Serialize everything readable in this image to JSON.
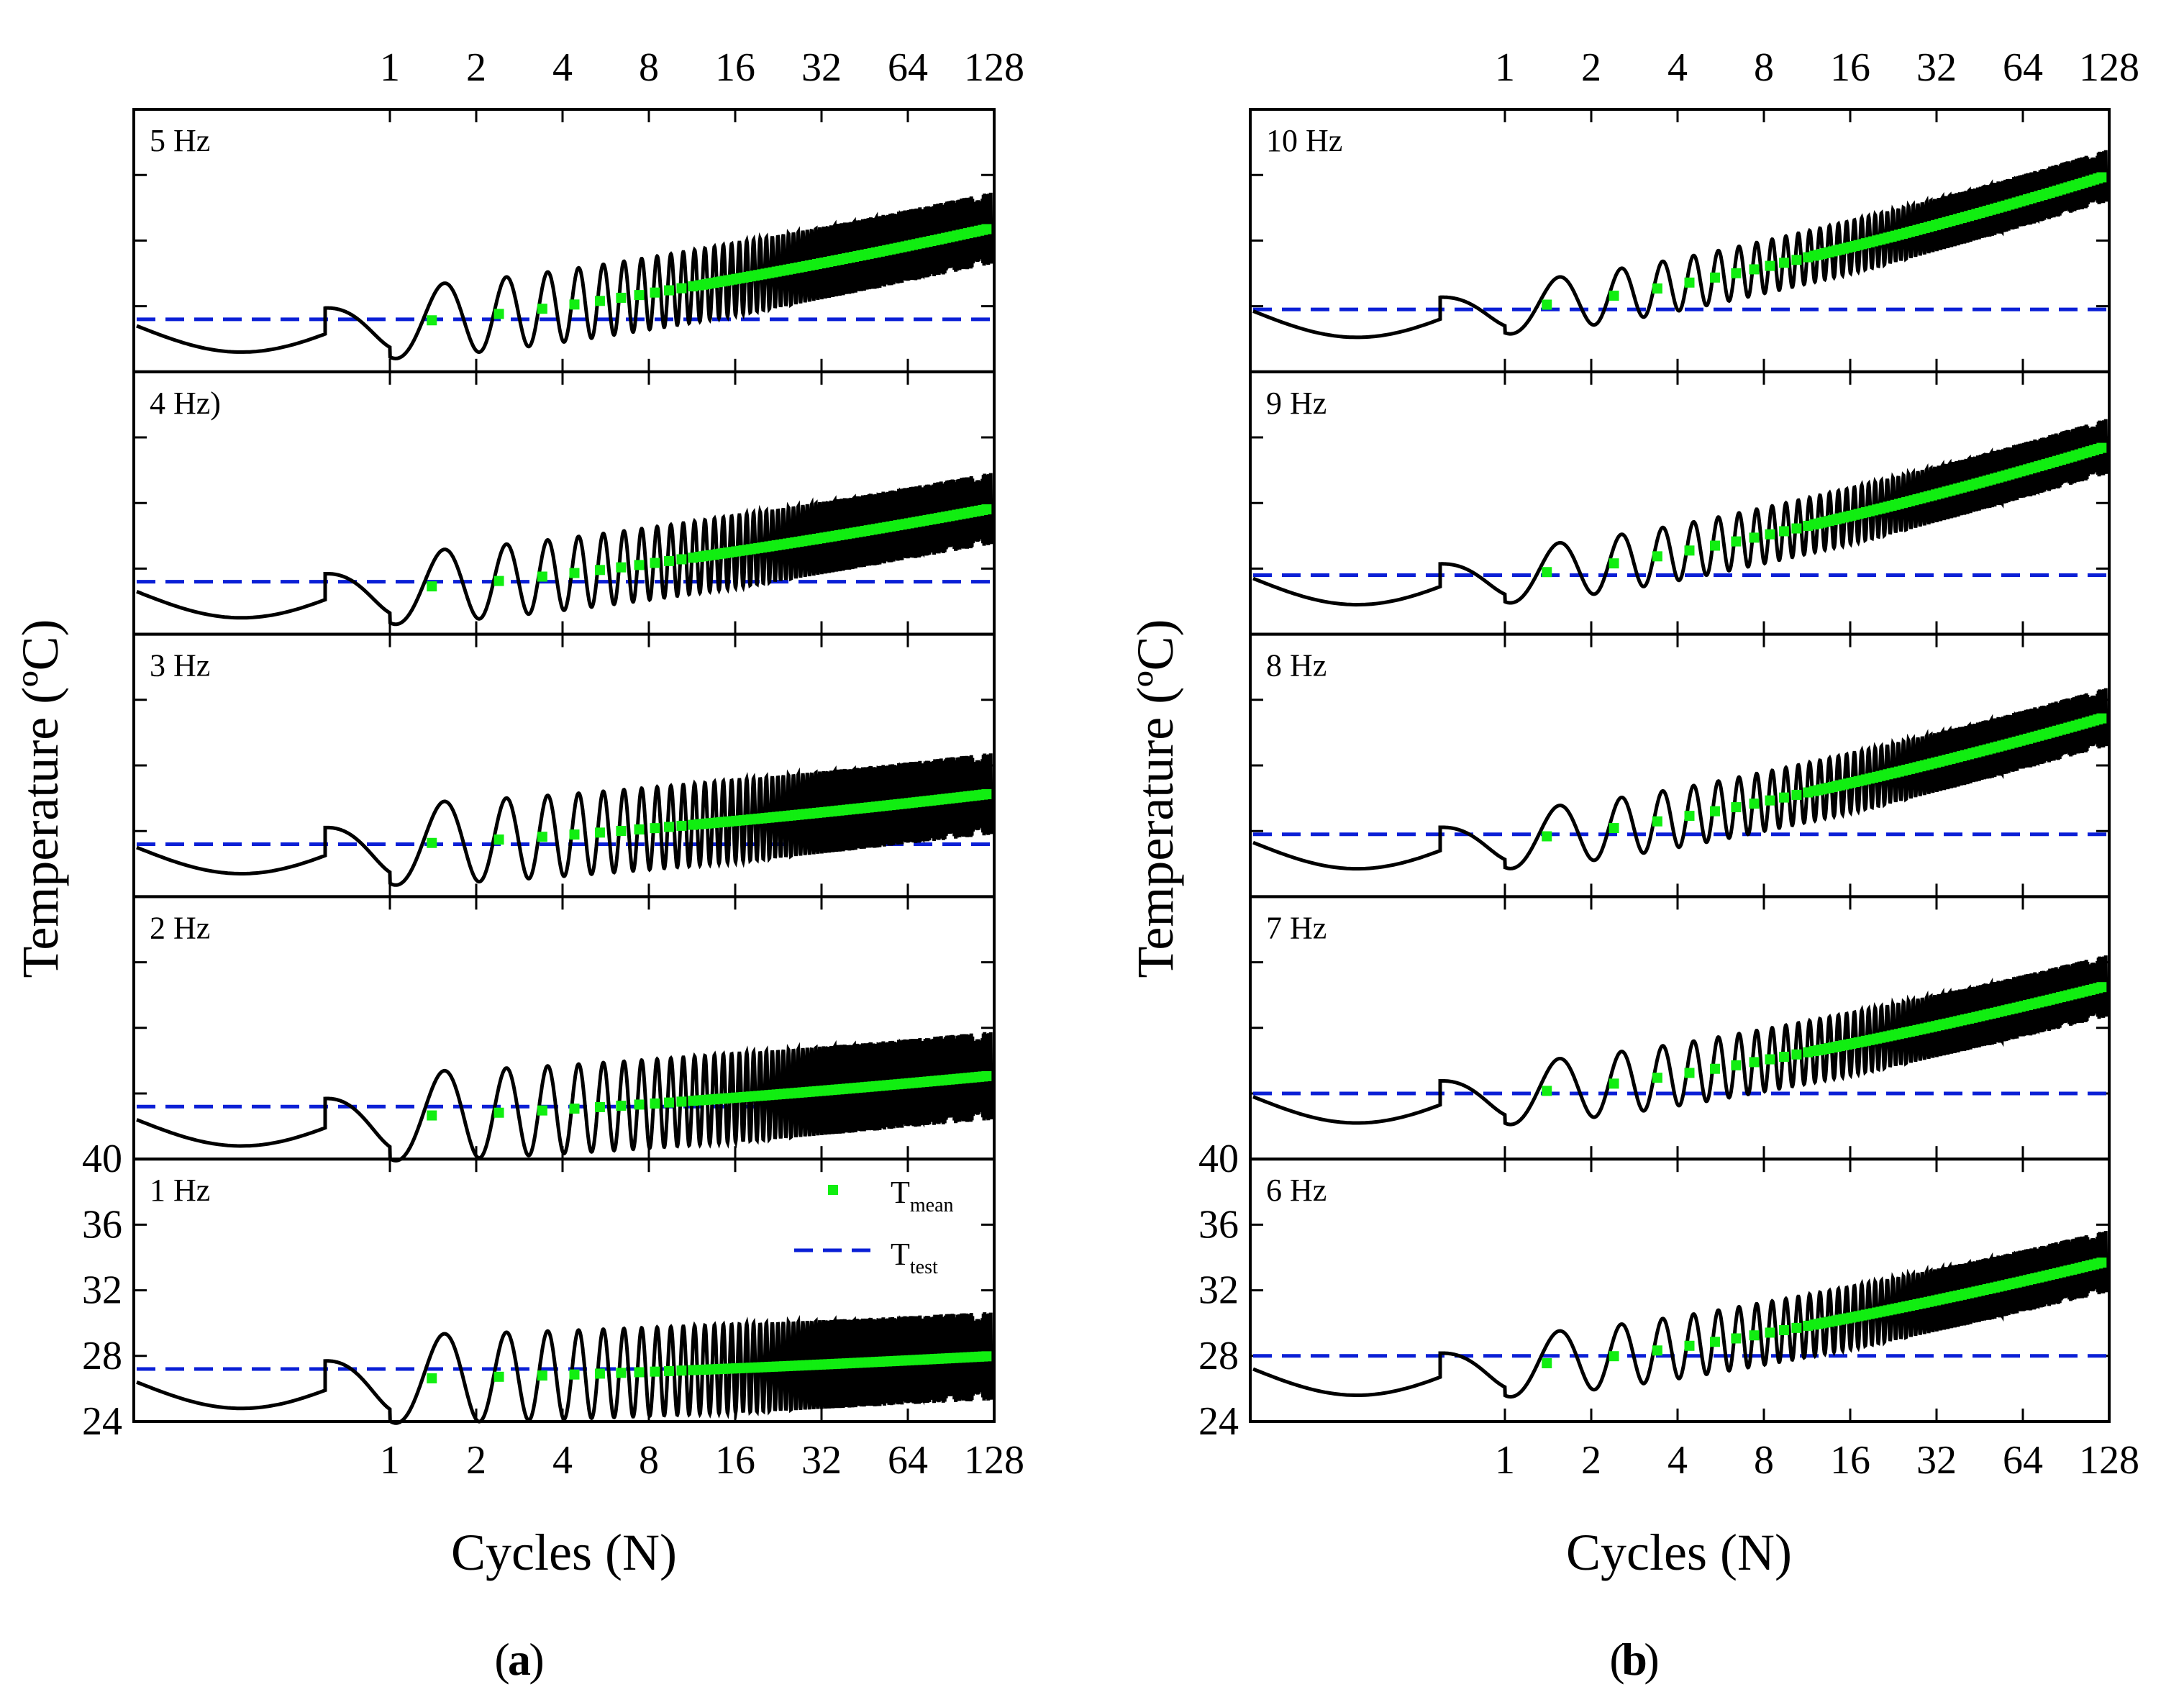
{
  "figure": {
    "panels": [
      {
        "id": "a",
        "label": "a"
      },
      {
        "id": "b",
        "label": "b"
      }
    ],
    "legend": {
      "items": [
        {
          "main": "T",
          "sub": "mean",
          "marker": "square",
          "color": "#11ee11"
        },
        {
          "main": "T",
          "sub": "test",
          "marker": "dashed-line",
          "color": "#0a1fd6"
        }
      ]
    }
  },
  "chart_data": [
    {
      "panel": "a",
      "type": "line",
      "xlabel": "Cycles (N)",
      "ylabel": "Temperature (ºC)",
      "xscale": "log2",
      "xticks": [
        "1",
        "2",
        "4",
        "8",
        "16",
        "32",
        "64",
        "128"
      ],
      "yticks_bottom_subplot": [
        "24",
        "28",
        "32",
        "36",
        "40"
      ],
      "ylim": [
        24,
        40
      ],
      "subplots": [
        {
          "label": "5 Hz",
          "t_test": 27.2,
          "t_start": 27.0,
          "t_final_mean": 32.8,
          "final_amplitude": 2.2
        },
        {
          "label": "4 Hz)",
          "t_test": 27.2,
          "t_start": 26.8,
          "t_final_mean": 31.7,
          "final_amplitude": 2.2
        },
        {
          "label": "3 Hz",
          "t_test": 27.2,
          "t_start": 27.2,
          "t_final_mean": 30.3,
          "final_amplitude": 2.5
        },
        {
          "label": "2 Hz",
          "t_test": 27.2,
          "t_start": 26.6,
          "t_final_mean": 29.1,
          "final_amplitude": 2.7
        },
        {
          "label": "1 Hz",
          "t_test": 27.2,
          "t_start": 26.6,
          "t_final_mean": 28.0,
          "final_amplitude": 2.7
        }
      ],
      "series": [
        {
          "name": "Tmean",
          "style": "green squares"
        },
        {
          "name": "Ttest",
          "style": "blue dashed"
        }
      ]
    },
    {
      "panel": "b",
      "type": "line",
      "xlabel": "Cycles (N)",
      "ylabel": "Temperature (ºC)",
      "xscale": "log2",
      "xticks": [
        "1",
        "2",
        "4",
        "8",
        "16",
        "32",
        "64",
        "128"
      ],
      "yticks_bottom_subplot": [
        "24",
        "28",
        "32",
        "36",
        "40"
      ],
      "ylim": [
        24,
        40
      ],
      "subplots": [
        {
          "label": "10 Hz",
          "t_test": 27.8,
          "t_start": 27.9,
          "t_final_mean": 36.0,
          "final_amplitude": 1.6
        },
        {
          "label": "9 Hz",
          "t_test": 27.6,
          "t_start": 27.6,
          "t_final_mean": 35.5,
          "final_amplitude": 1.7
        },
        {
          "label": "8 Hz",
          "t_test": 27.8,
          "t_start": 27.5,
          "t_final_mean": 35.0,
          "final_amplitude": 1.8
        },
        {
          "label": "7 Hz",
          "t_test": 28.0,
          "t_start": 28.0,
          "t_final_mean": 34.6,
          "final_amplitude": 1.9
        },
        {
          "label": "6 Hz",
          "t_test": 28.0,
          "t_start": 27.4,
          "t_final_mean": 33.8,
          "final_amplitude": 1.9
        }
      ],
      "series": [
        {
          "name": "Tmean",
          "style": "green squares"
        },
        {
          "name": "Ttest",
          "style": "blue dashed"
        }
      ]
    }
  ]
}
